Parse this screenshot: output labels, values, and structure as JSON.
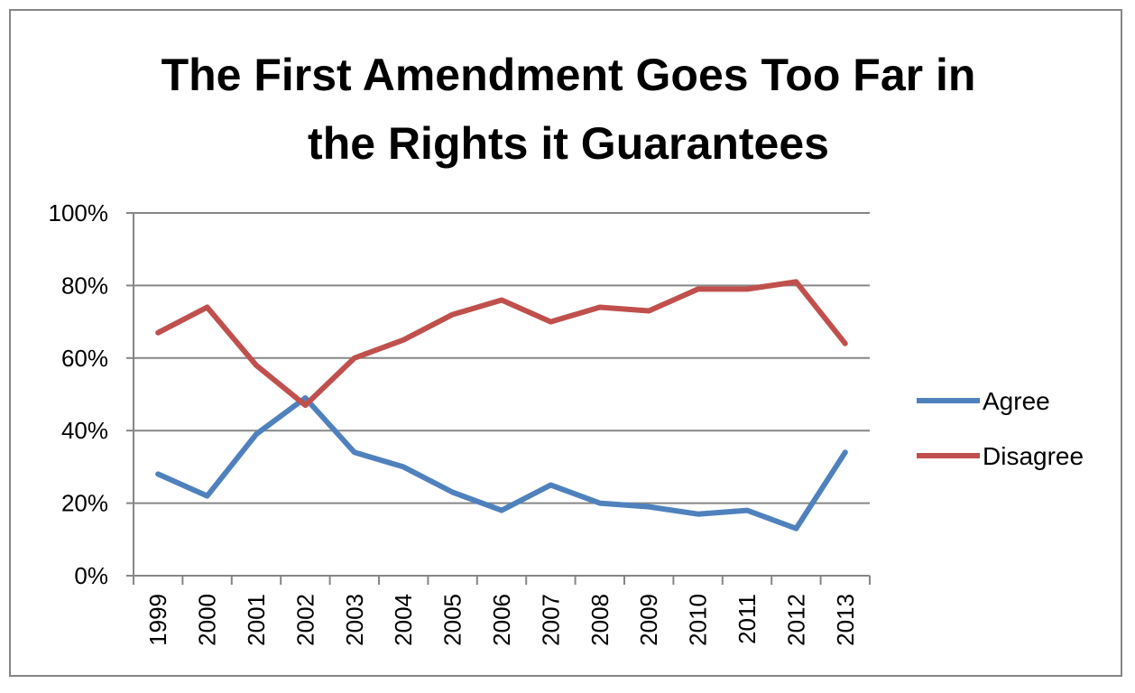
{
  "chart_data": {
    "type": "line",
    "title_lines": [
      "The First Amendment Goes Too Far in",
      "the Rights it Guarantees"
    ],
    "xlabel": "",
    "ylabel": "",
    "categories": [
      "1999",
      "2000",
      "2001",
      "2002",
      "2003",
      "2004",
      "2005",
      "2006",
      "2007",
      "2008",
      "2009",
      "2010",
      "2011",
      "2012",
      "2013"
    ],
    "ylim": [
      0,
      100
    ],
    "ytick_values": [
      0,
      20,
      40,
      60,
      80,
      100
    ],
    "ytick_labels": [
      "0%",
      "20%",
      "40%",
      "60%",
      "80%",
      "100%"
    ],
    "grid": true,
    "legend_position": "right",
    "series": [
      {
        "name": "Agree",
        "color": "#4F81BD",
        "values": [
          28,
          22,
          39,
          49,
          34,
          30,
          23,
          18,
          25,
          20,
          19,
          17,
          18,
          13,
          34
        ]
      },
      {
        "name": "Disagree",
        "color": "#C0504D",
        "values": [
          67,
          74,
          58,
          47,
          60,
          65,
          72,
          76,
          70,
          74,
          73,
          79,
          79,
          81,
          64
        ]
      }
    ]
  }
}
